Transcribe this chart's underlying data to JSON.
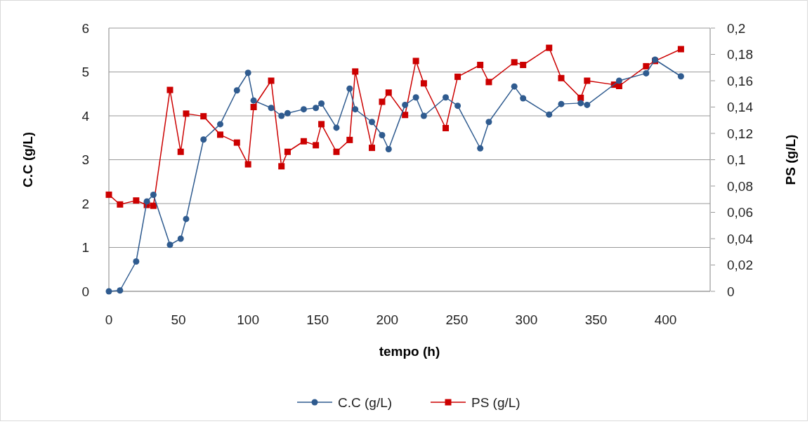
{
  "chart_data": {
    "type": "line",
    "xlabel": "tempo (h)",
    "ylabel": "C.C (g/L)",
    "y2label": "PS (g/L)",
    "xlim": [
      0,
      432
    ],
    "xticks": [
      0,
      50,
      100,
      150,
      200,
      250,
      300,
      350,
      400
    ],
    "ylim": [
      0,
      6
    ],
    "yticks": [
      0,
      1,
      2,
      3,
      4,
      5,
      6
    ],
    "y2lim": [
      0,
      0.2
    ],
    "y2ticks": [
      {
        "value": 0,
        "label": "0"
      },
      {
        "value": 0.02,
        "label": "0,02"
      },
      {
        "value": 0.04,
        "label": "0,04"
      },
      {
        "value": 0.06,
        "label": "0,06"
      },
      {
        "value": 0.08,
        "label": "0,08"
      },
      {
        "value": 0.1,
        "label": "0,1"
      },
      {
        "value": 0.12,
        "label": "0,12"
      },
      {
        "value": 0.14,
        "label": "0,14"
      },
      {
        "value": 0.16,
        "label": "0,16"
      },
      {
        "value": 0.18,
        "label": "0,18"
      },
      {
        "value": 0.2,
        "label": "0,2"
      }
    ],
    "grid": "y",
    "legend": "bottom",
    "series": [
      {
        "name": "C.C (g/L)",
        "color": "#2f5b8f",
        "marker": "circle",
        "x": [
          0,
          8,
          19.6,
          27.3,
          32,
          43.9,
          51.6,
          55.5,
          68,
          80,
          92,
          100,
          104,
          116.6,
          124,
          128.4,
          140,
          148.7,
          152.7,
          163.5,
          173,
          177,
          189,
          196.3,
          201,
          212.8,
          220.6,
          226.3,
          242,
          250.6,
          266.8,
          273,
          291.3,
          297.6,
          316.3,
          325,
          339,
          343.6,
          366.6,
          386,
          392.4,
          411
        ],
        "values": [
          0,
          0.02,
          0.68,
          2.05,
          2.2,
          1.06,
          1.2,
          1.65,
          3.46,
          3.81,
          4.58,
          4.98,
          4.35,
          4.18,
          4.0,
          4.06,
          4.15,
          4.18,
          4.28,
          3.73,
          4.62,
          4.15,
          3.86,
          3.56,
          3.24,
          4.25,
          4.42,
          4.0,
          4.42,
          4.23,
          3.26,
          3.86,
          4.67,
          4.4,
          4.03,
          4.27,
          4.29,
          4.25,
          4.8,
          4.97,
          5.28,
          4.9
        ]
      },
      {
        "name": "PS (g/L)",
        "color": "#cc0000",
        "marker": "square",
        "axis": "y2",
        "x": [
          0,
          8,
          19.6,
          27.3,
          32,
          43.9,
          51.6,
          55.5,
          68,
          80,
          92,
          100,
          104,
          116.6,
          124,
          128.4,
          140,
          148.7,
          152.7,
          163.5,
          173,
          177,
          189,
          196.3,
          201,
          212.8,
          220.6,
          226.3,
          242,
          250.6,
          266.8,
          273,
          291.3,
          297.6,
          316.3,
          325,
          339,
          343.6,
          363,
          366.6,
          386,
          392.4,
          411
        ],
        "values": [
          0.0734,
          0.066,
          0.069,
          0.0656,
          0.065,
          0.153,
          0.106,
          0.135,
          0.133,
          0.119,
          0.113,
          0.0965,
          0.14,
          0.16,
          0.095,
          0.106,
          0.114,
          0.111,
          0.127,
          0.106,
          0.115,
          0.167,
          0.109,
          0.144,
          0.151,
          0.134,
          0.175,
          0.158,
          0.124,
          0.163,
          0.172,
          0.159,
          0.174,
          0.172,
          0.185,
          0.162,
          0.147,
          0.16,
          0.157,
          0.156,
          0.171,
          0.175,
          0.184
        ]
      }
    ]
  }
}
